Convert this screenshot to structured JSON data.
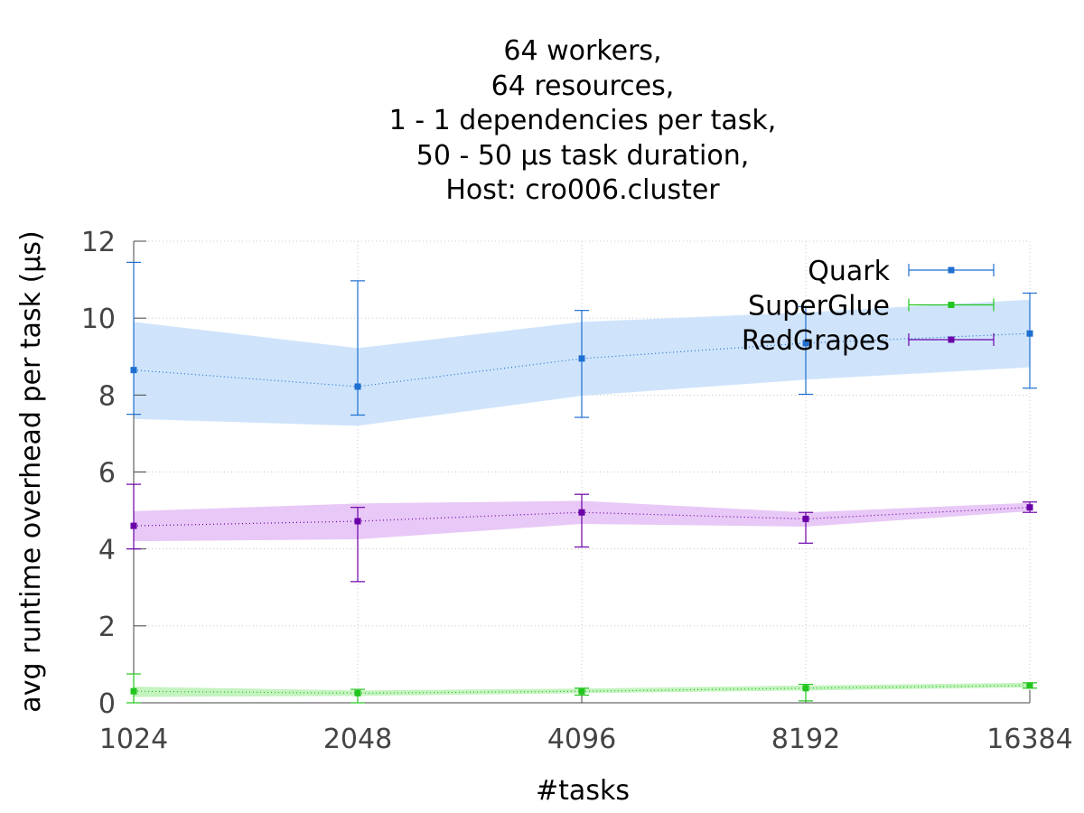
{
  "chart_data": {
    "type": "line",
    "title_lines": [
      "64 workers,",
      "64 resources,",
      "1 - 1 dependencies per task,",
      "50 - 50 μs task duration,",
      "Host: cro006.cluster"
    ],
    "xlabel": "#tasks",
    "ylabel": "avg runtime overhead per task (μs)",
    "x": [
      1024,
      2048,
      4096,
      8192,
      16384
    ],
    "x_tick_labels": [
      "1024",
      "2048",
      "4096",
      "8192",
      "16384"
    ],
    "xscale": "log2",
    "ylim": [
      0,
      12
    ],
    "y_ticks": [
      0,
      2,
      4,
      6,
      8,
      10,
      12
    ],
    "grid": true,
    "legend_position": "top-right",
    "series": [
      {
        "name": "Quark",
        "color": "#1f6fd1",
        "band_color": "#cfe4fb",
        "values": [
          8.65,
          8.22,
          8.95,
          9.35,
          9.6
        ],
        "err_low": [
          7.5,
          7.48,
          7.42,
          8.02,
          8.18
        ],
        "err_high": [
          11.45,
          10.97,
          10.2,
          10.3,
          10.65
        ],
        "band_low": [
          7.38,
          7.2,
          7.98,
          8.4,
          8.72
        ],
        "band_high": [
          9.9,
          9.22,
          9.9,
          10.15,
          10.48
        ]
      },
      {
        "name": "SuperGlue",
        "color": "#22c51e",
        "band_color": "#c5f3c0",
        "values": [
          0.3,
          0.25,
          0.3,
          0.38,
          0.45
        ],
        "err_low": [
          0.0,
          0.0,
          0.2,
          0.05,
          0.38
        ],
        "err_high": [
          0.75,
          0.35,
          0.38,
          0.48,
          0.52
        ],
        "band_low": [
          0.15,
          0.18,
          0.25,
          0.32,
          0.4
        ],
        "band_high": [
          0.42,
          0.32,
          0.37,
          0.45,
          0.52
        ]
      },
      {
        "name": "RedGrapes",
        "color": "#6a00a8",
        "band_color": "#e8c8f6",
        "values": [
          4.6,
          4.72,
          4.95,
          4.78,
          5.08
        ],
        "err_low": [
          4.0,
          3.15,
          4.05,
          4.15,
          4.95
        ],
        "err_high": [
          5.68,
          5.08,
          5.42,
          4.95,
          5.22
        ],
        "band_low": [
          4.2,
          4.25,
          4.65,
          4.58,
          4.98
        ],
        "band_high": [
          4.98,
          5.18,
          5.25,
          4.95,
          5.2
        ]
      }
    ]
  }
}
